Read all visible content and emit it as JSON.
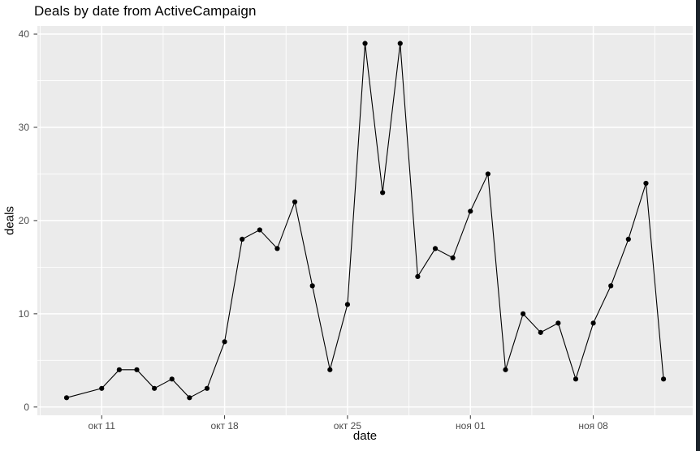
{
  "title": "Deals by date from ActiveCampaign",
  "window": {
    "right_border_color": "#1b232b",
    "background_color": "#ffffff"
  },
  "chart_data": {
    "type": "line",
    "title": "Deals by date from ActiveCampaign",
    "xlabel": "date",
    "ylabel": "deals",
    "ylim": [
      0,
      40
    ],
    "grid": true,
    "legend_position": "none",
    "panel_bg": "#EBEBEB",
    "grid_color": "#FFFFFF",
    "line_color": "#000000",
    "point_color": "#000000",
    "tick_label_color": "#4D4D4D",
    "tick_mark_color": "#333333",
    "y_major_ticks": [
      0,
      10,
      20,
      30,
      40
    ],
    "y_minor_ticks": [
      5,
      15,
      25,
      35
    ],
    "x_major_ticks": [
      {
        "label": "окт 11",
        "day": 2
      },
      {
        "label": "окт 18",
        "day": 9
      },
      {
        "label": "окт 25",
        "day": 16
      },
      {
        "label": "ноя 01",
        "day": 23
      },
      {
        "label": "ноя 08",
        "day": 30
      }
    ],
    "x_minor_days": [
      -1.5,
      5.5,
      12.5,
      19.5,
      26.5,
      33.5
    ],
    "points": [
      {
        "date": "окт 09",
        "day": 0,
        "value": 1
      },
      {
        "date": "окт 11",
        "day": 2,
        "value": 2
      },
      {
        "date": "окт 12",
        "day": 3,
        "value": 4
      },
      {
        "date": "окт 13",
        "day": 4,
        "value": 4
      },
      {
        "date": "окт 14",
        "day": 5,
        "value": 2
      },
      {
        "date": "окт 15",
        "day": 6,
        "value": 3
      },
      {
        "date": "окт 16",
        "day": 7,
        "value": 1
      },
      {
        "date": "окт 17",
        "day": 8,
        "value": 2
      },
      {
        "date": "окт 18",
        "day": 9,
        "value": 7
      },
      {
        "date": "окт 19",
        "day": 10,
        "value": 18
      },
      {
        "date": "окт 20",
        "day": 11,
        "value": 19
      },
      {
        "date": "окт 21",
        "day": 12,
        "value": 17
      },
      {
        "date": "окт 22",
        "day": 13,
        "value": 22
      },
      {
        "date": "окт 23",
        "day": 14,
        "value": 13
      },
      {
        "date": "окт 24",
        "day": 15,
        "value": 4
      },
      {
        "date": "окт 25",
        "day": 16,
        "value": 11
      },
      {
        "date": "окт 26",
        "day": 17,
        "value": 39
      },
      {
        "date": "окт 27",
        "day": 18,
        "value": 23
      },
      {
        "date": "окт 28",
        "day": 19,
        "value": 39
      },
      {
        "date": "окт 29",
        "day": 20,
        "value": 14
      },
      {
        "date": "окт 30",
        "day": 21,
        "value": 17
      },
      {
        "date": "окт 31",
        "day": 22,
        "value": 16
      },
      {
        "date": "ноя 01",
        "day": 23,
        "value": 21
      },
      {
        "date": "ноя 02",
        "day": 24,
        "value": 25
      },
      {
        "date": "ноя 03",
        "day": 25,
        "value": 4
      },
      {
        "date": "ноя 04",
        "day": 26,
        "value": 10
      },
      {
        "date": "ноя 05",
        "day": 27,
        "value": 8
      },
      {
        "date": "ноя 06",
        "day": 28,
        "value": 9
      },
      {
        "date": "ноя 07",
        "day": 29,
        "value": 3
      },
      {
        "date": "ноя 08",
        "day": 30,
        "value": 9
      },
      {
        "date": "ноя 09",
        "day": 31,
        "value": 13
      },
      {
        "date": "ноя 10",
        "day": 32,
        "value": 18
      },
      {
        "date": "ноя 11",
        "day": 33,
        "value": 24
      },
      {
        "date": "ноя 12",
        "day": 34,
        "value": 3
      }
    ]
  }
}
